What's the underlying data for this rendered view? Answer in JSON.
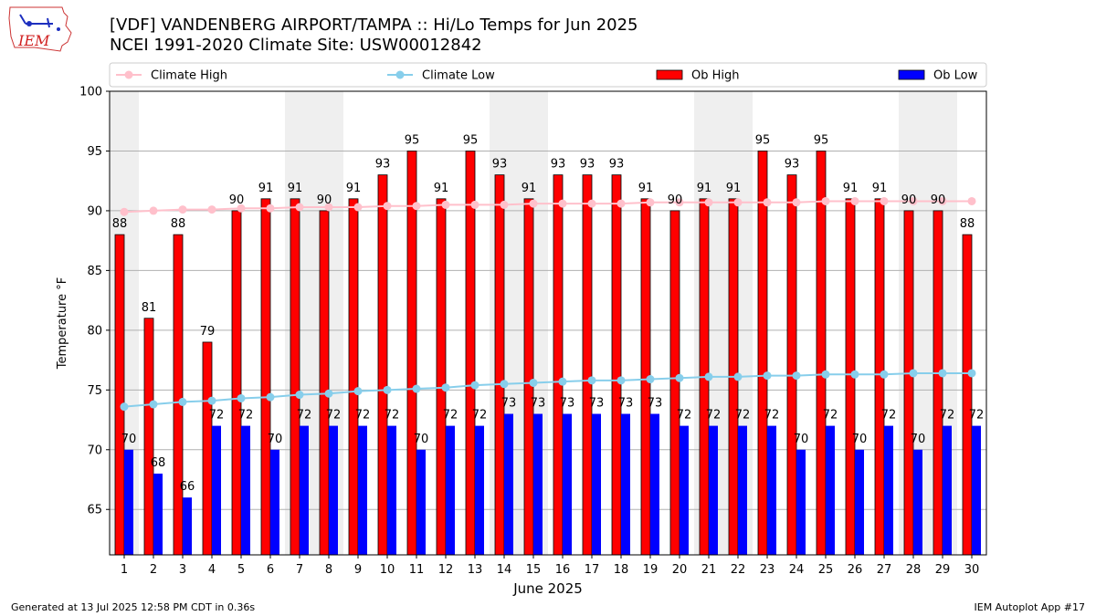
{
  "title_line1": "[VDF] VANDENBERG AIRPORT/TAMPA :: Hi/Lo Temps for Jun 2025",
  "title_line2": "NCEI 1991-2020 Climate Site: USW00012842",
  "logo_text": "IEM",
  "footer_left": "Generated at 13 Jul 2025 12:58 PM CDT in 0.36s",
  "footer_right": "IEM Autoplot App #17",
  "colors": {
    "ob_high": "#ff0000",
    "ob_low": "#0000ff",
    "climate_high": "#ffc0cb",
    "climate_low": "#87ceeb",
    "weekend_band": "#efefef"
  },
  "chart_data": {
    "type": "bar",
    "xlabel": "June 2025",
    "ylabel": "Temperature °F",
    "ylim": [
      61.2,
      100
    ],
    "yticks": [
      65,
      70,
      75,
      80,
      85,
      90,
      95,
      100
    ],
    "grid": true,
    "legend_position": "top",
    "categories": [
      "1",
      "2",
      "3",
      "4",
      "5",
      "6",
      "7",
      "8",
      "9",
      "10",
      "11",
      "12",
      "13",
      "14",
      "15",
      "16",
      "17",
      "18",
      "19",
      "20",
      "21",
      "22",
      "23",
      "24",
      "25",
      "26",
      "27",
      "28",
      "29",
      "30"
    ],
    "shaded_days": [
      1,
      7,
      8,
      14,
      15,
      21,
      22,
      28,
      29
    ],
    "series": [
      {
        "name": "Ob High",
        "kind": "bar",
        "values": [
          88,
          81,
          88,
          79,
          90,
          91,
          91,
          90,
          91,
          93,
          95,
          91,
          95,
          93,
          91,
          93,
          93,
          93,
          91,
          90,
          91,
          91,
          95,
          93,
          95,
          91,
          91,
          90,
          90,
          88
        ]
      },
      {
        "name": "Ob Low",
        "kind": "bar",
        "values": [
          70,
          68,
          66,
          72,
          72,
          70,
          72,
          72,
          72,
          72,
          70,
          72,
          72,
          73,
          73,
          73,
          73,
          73,
          73,
          72,
          72,
          72,
          72,
          70,
          72,
          70,
          72,
          70,
          72,
          72
        ]
      },
      {
        "name": "Climate High",
        "kind": "line",
        "values": [
          89.9,
          90.0,
          90.1,
          90.1,
          90.2,
          90.2,
          90.3,
          90.3,
          90.3,
          90.4,
          90.4,
          90.5,
          90.5,
          90.5,
          90.6,
          90.6,
          90.6,
          90.6,
          90.7,
          90.7,
          90.7,
          90.7,
          90.7,
          90.7,
          90.8,
          90.8,
          90.8,
          90.8,
          90.8,
          90.8
        ]
      },
      {
        "name": "Climate Low",
        "kind": "line",
        "values": [
          73.6,
          73.8,
          74.0,
          74.1,
          74.3,
          74.4,
          74.6,
          74.7,
          74.9,
          75.0,
          75.1,
          75.2,
          75.4,
          75.5,
          75.6,
          75.7,
          75.8,
          75.8,
          75.9,
          76.0,
          76.1,
          76.1,
          76.2,
          76.2,
          76.3,
          76.3,
          76.3,
          76.4,
          76.4,
          76.4
        ]
      }
    ]
  }
}
